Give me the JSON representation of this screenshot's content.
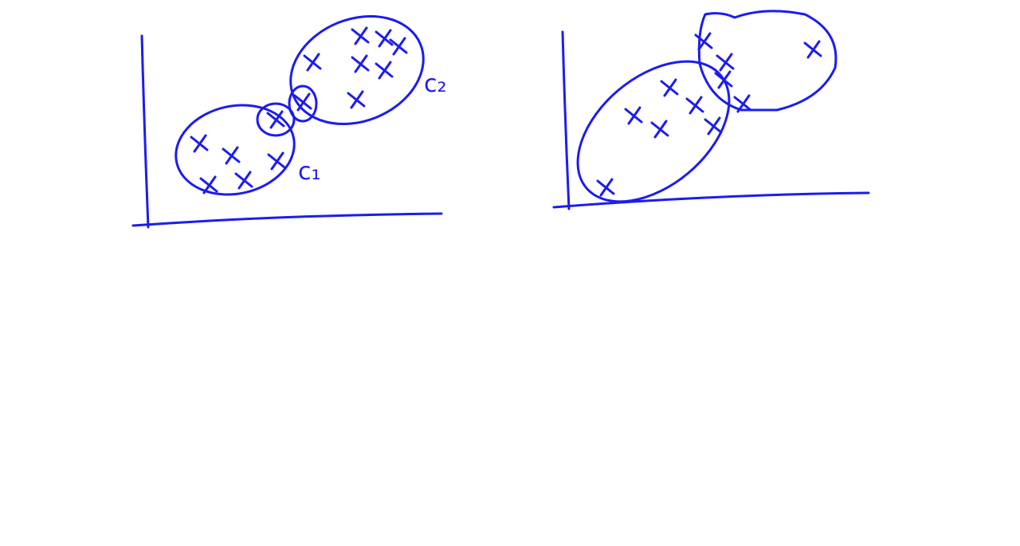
{
  "labels": {
    "cluster_2": "c₂",
    "cluster_1": "c₁"
  }
}
